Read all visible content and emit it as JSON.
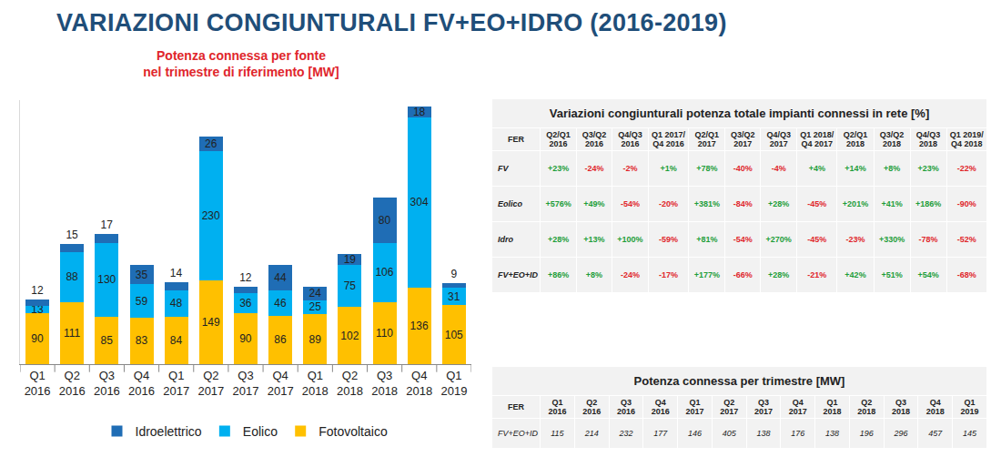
{
  "title": "VARIAZIONI CONGIUNTURALI FV+EO+IDRO (2016-2019)",
  "chart_data": {
    "type": "bar",
    "title": "Potenza connessa per fonte\nnel trimestre di riferimento [MW]",
    "categories": [
      "Q1 2016",
      "Q2 2016",
      "Q3 2016",
      "Q4 2016",
      "Q1 2017",
      "Q2 2017",
      "Q3 2017",
      "Q4 2017",
      "Q1 2018",
      "Q2 2018",
      "Q3 2018",
      "Q4 2018",
      "Q1 2019"
    ],
    "series": [
      {
        "name": "Fotovoltaico",
        "color": "#FFC000",
        "values": [
          90,
          111,
          85,
          83,
          84,
          149,
          90,
          86,
          89,
          102,
          110,
          136,
          105
        ]
      },
      {
        "name": "Eolico",
        "color": "#00B0F0",
        "values": [
          13,
          88,
          130,
          59,
          48,
          230,
          36,
          46,
          25,
          75,
          106,
          304,
          31
        ]
      },
      {
        "name": "Idroelettrico",
        "color": "#1F6DB5",
        "values": [
          12,
          15,
          17,
          35,
          14,
          26,
          12,
          44,
          24,
          19,
          80,
          18,
          9
        ]
      }
    ],
    "stacked": true,
    "data_labels": true,
    "legend": "bottom",
    "tick_labels": "x",
    "grid": false,
    "ylim": [
      0,
      470
    ],
    "yticks": []
  },
  "tables": [
    {
      "title": "Variazioni congiunturali potenza totale impianti connessi in rete [%]",
      "header": [
        "FER",
        "Q2/Q1 2016",
        "Q3/Q2 2016",
        "Q4/Q3 2016",
        "Q1 2017/ Q4 2016",
        "Q2/Q1 2017",
        "Q3/Q2 2017",
        "Q4/Q3 2017",
        "Q1 2018/ Q4 2017",
        "Q2/Q1 2018",
        "Q3/Q2 2018",
        "Q4/Q3 2018",
        "Q1 2019/ Q4 2018"
      ],
      "rows": [
        [
          "FV",
          "+23%",
          "-24%",
          "-2%",
          "+1%",
          "+78%",
          "-40%",
          "-4%",
          "+4%",
          "+14%",
          "+8%",
          "+23%",
          "-22%"
        ],
        [
          "Eolico",
          "+576%",
          "+49%",
          "-54%",
          "-20%",
          "+381%",
          "-84%",
          "+28%",
          "-45%",
          "+201%",
          "+41%",
          "+186%",
          "-90%"
        ],
        [
          "Idro",
          "+28%",
          "+13%",
          "+100%",
          "-59%",
          "+81%",
          "-54%",
          "+270%",
          "-45%",
          "-23%",
          "+330%",
          "-78%",
          "-52%"
        ],
        [
          "FV+EO+ID",
          "+86%",
          "+8%",
          "-24%",
          "-17%",
          "+177%",
          "-66%",
          "+28%",
          "-21%",
          "+42%",
          "+51%",
          "+54%",
          "-68%"
        ]
      ]
    },
    {
      "title": "Potenza connessa per trimestre [MW]",
      "header": [
        "FER",
        "Q1 2016",
        "Q2 2016",
        "Q3 2016",
        "Q4 2016",
        "Q1 2017",
        "Q2 2017",
        "Q3 2017",
        "Q4 2017",
        "Q1 2018",
        "Q2 2018",
        "Q3 2018",
        "Q4 2018",
        "Q1 2019"
      ],
      "rows": [
        [
          "FV+EO+ID",
          115,
          214,
          232,
          177,
          146,
          405,
          138,
          176,
          138,
          196,
          296,
          457,
          145
        ]
      ]
    }
  ]
}
